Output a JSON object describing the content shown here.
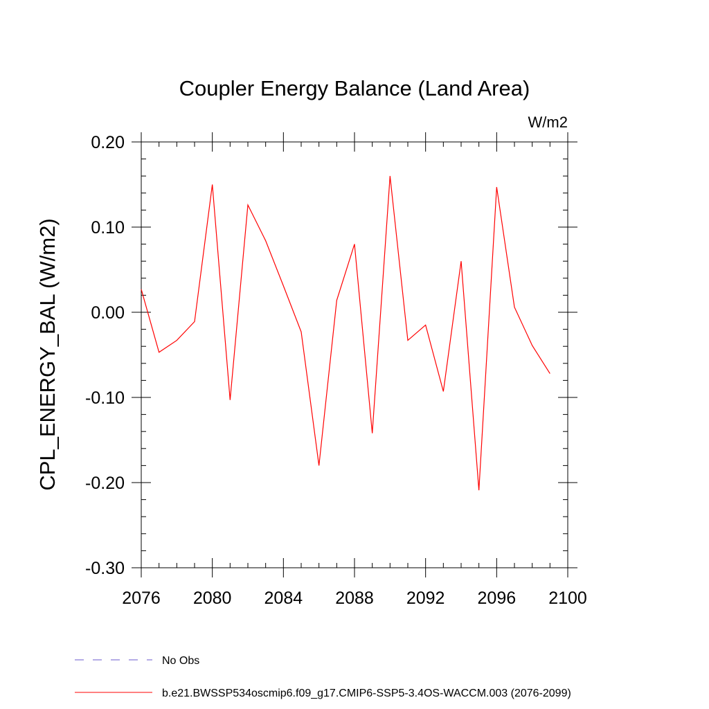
{
  "chart_data": {
    "type": "line",
    "title": "Coupler Energy Balance (Land Area)",
    "units": "W/m2",
    "ylabel": "CPL_ENERGY_BAL  (W/m2)",
    "xlabel": "",
    "xlim": [
      2076,
      2100
    ],
    "ylim": [
      -0.3,
      0.2
    ],
    "xticks": [
      2076,
      2080,
      2084,
      2088,
      2092,
      2096,
      2100
    ],
    "xtick_labels": [
      "2076",
      "2080",
      "2084",
      "2088",
      "2092",
      "2096",
      "2100"
    ],
    "yticks": [
      -0.3,
      -0.2,
      -0.1,
      0.0,
      0.1,
      0.2
    ],
    "ytick_labels": [
      "-0.30",
      "-0.20",
      "-0.10",
      "0.00",
      "0.10",
      "0.20"
    ],
    "grid": false,
    "legend_position": "bottom-left",
    "series": [
      {
        "name": "b.e21.BWSSP534oscmip6.f09_g17.CMIP6-SSP5-3.4OS-WACCM.003 (2076-2099)",
        "color": "#ff0000",
        "style": "solid",
        "x": [
          2076,
          2077,
          2078,
          2079,
          2080,
          2081,
          2082,
          2083,
          2084,
          2085,
          2086,
          2087,
          2088,
          2089,
          2090,
          2091,
          2092,
          2093,
          2094,
          2095,
          2096,
          2097,
          2098,
          2099
        ],
        "values": [
          0.027,
          -0.047,
          -0.033,
          -0.011,
          0.15,
          -0.103,
          0.126,
          0.084,
          0.031,
          -0.023,
          -0.18,
          0.014,
          0.08,
          -0.142,
          0.16,
          -0.033,
          -0.015,
          -0.093,
          0.06,
          -0.209,
          0.147,
          0.006,
          -0.039,
          -0.072
        ]
      }
    ],
    "legend": [
      {
        "label": "No Obs",
        "color": "#6a5acd",
        "style": "dashed"
      },
      {
        "label": "b.e21.BWSSP534oscmip6.f09_g17.CMIP6-SSP5-3.4OS-WACCM.003 (2076-2099)",
        "color": "#ff0000",
        "style": "solid"
      }
    ]
  }
}
